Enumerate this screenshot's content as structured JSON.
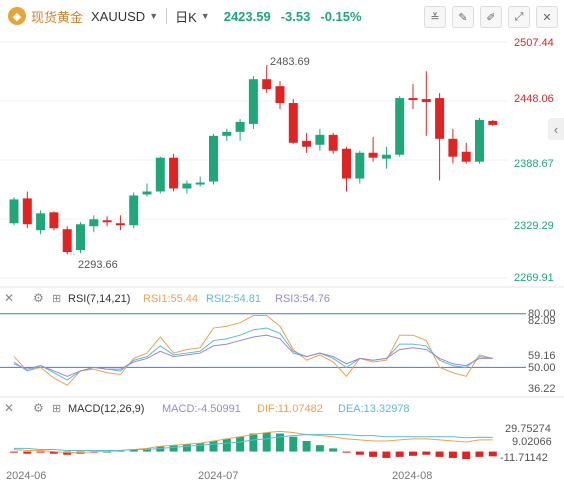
{
  "header": {
    "title": "现货黄金",
    "symbol": "XAUUSD",
    "period": "日K",
    "last_price": "2423.59",
    "change": "-3.53",
    "change_pct": "-0.15%"
  },
  "colors": {
    "up": "#e02424",
    "down": "#1fa77b",
    "rsi1": "#f0a050",
    "rsi2": "#5bbcd6",
    "rsi3": "#9a86d8",
    "macd_label": "#9a86d8",
    "dif": "#f0a050",
    "dea": "#5bbcd6"
  },
  "price_axis": [
    "2507.44",
    "2448.06",
    "2388.67",
    "2329.29",
    "2269.91"
  ],
  "annotations": {
    "high": "2483.69",
    "low": "2293.66"
  },
  "rsi_header": {
    "name": "RSI(7,14,21)",
    "rsi1": "RSI1:55.44",
    "rsi2": "RSI2:54.81",
    "rsi3": "RSI3:54.76"
  },
  "rsi_axis": {
    "upper": "80.00",
    "max": "82.09",
    "mid": "59.16",
    "lower": "50.00",
    "min": "36.22"
  },
  "macd_header": {
    "name": "MACD(12,26,9)",
    "macd": "MACD:-4.50991",
    "dif": "DIF:11.07482",
    "dea": "DEA:13.32978"
  },
  "macd_axis": [
    "29.75274",
    "9.02066",
    "-11.71142"
  ],
  "x_axis": [
    "2024-06",
    "2024-07",
    "2024-08"
  ],
  "chart_data": [
    {
      "type": "candlestick",
      "title": "XAUUSD",
      "ylim": [
        2269.91,
        2507.44
      ],
      "candles": [
        {
          "o": 2325,
          "h": 2351,
          "l": 2323,
          "c": 2349
        },
        {
          "o": 2350,
          "h": 2357,
          "l": 2320,
          "c": 2324
        },
        {
          "o": 2318,
          "h": 2338,
          "l": 2314,
          "c": 2335
        },
        {
          "o": 2336,
          "h": 2337,
          "l": 2318,
          "c": 2320
        },
        {
          "o": 2319,
          "h": 2322,
          "l": 2294,
          "c": 2296
        },
        {
          "o": 2298,
          "h": 2326,
          "l": 2295,
          "c": 2324
        },
        {
          "o": 2322,
          "h": 2333,
          "l": 2316,
          "c": 2329
        },
        {
          "o": 2328,
          "h": 2332,
          "l": 2322,
          "c": 2326
        },
        {
          "o": 2325,
          "h": 2333,
          "l": 2318,
          "c": 2323
        },
        {
          "o": 2323,
          "h": 2356,
          "l": 2320,
          "c": 2353
        },
        {
          "o": 2354,
          "h": 2365,
          "l": 2352,
          "c": 2357
        },
        {
          "o": 2357,
          "h": 2392,
          "l": 2355,
          "c": 2391
        },
        {
          "o": 2391,
          "h": 2395,
          "l": 2357,
          "c": 2360
        },
        {
          "o": 2360,
          "h": 2368,
          "l": 2355,
          "c": 2365
        },
        {
          "o": 2364,
          "h": 2372,
          "l": 2362,
          "c": 2366
        },
        {
          "o": 2367,
          "h": 2415,
          "l": 2364,
          "c": 2413
        },
        {
          "o": 2413,
          "h": 2420,
          "l": 2408,
          "c": 2417
        },
        {
          "o": 2417,
          "h": 2430,
          "l": 2408,
          "c": 2427
        },
        {
          "o": 2425,
          "h": 2473,
          "l": 2420,
          "c": 2470
        },
        {
          "o": 2470,
          "h": 2483.69,
          "l": 2456,
          "c": 2460
        },
        {
          "o": 2463,
          "h": 2468,
          "l": 2440,
          "c": 2446
        },
        {
          "o": 2446,
          "h": 2450,
          "l": 2405,
          "c": 2406
        },
        {
          "o": 2408,
          "h": 2416,
          "l": 2396,
          "c": 2402
        },
        {
          "o": 2404,
          "h": 2420,
          "l": 2398,
          "c": 2414
        },
        {
          "o": 2414,
          "h": 2416,
          "l": 2395,
          "c": 2398
        },
        {
          "o": 2400,
          "h": 2402,
          "l": 2357,
          "c": 2370
        },
        {
          "o": 2370,
          "h": 2398,
          "l": 2365,
          "c": 2396
        },
        {
          "o": 2396,
          "h": 2412,
          "l": 2387,
          "c": 2391
        },
        {
          "o": 2390,
          "h": 2402,
          "l": 2380,
          "c": 2394
        },
        {
          "o": 2394,
          "h": 2453,
          "l": 2392,
          "c": 2451
        },
        {
          "o": 2451,
          "h": 2465,
          "l": 2440,
          "c": 2449
        },
        {
          "o": 2450,
          "h": 2478,
          "l": 2413,
          "c": 2447
        },
        {
          "o": 2451,
          "h": 2456,
          "l": 2368,
          "c": 2410
        },
        {
          "o": 2410,
          "h": 2420,
          "l": 2385,
          "c": 2392
        },
        {
          "o": 2397,
          "h": 2406,
          "l": 2385,
          "c": 2387
        },
        {
          "o": 2387,
          "h": 2431,
          "l": 2385,
          "c": 2429
        },
        {
          "o": 2428,
          "h": 2429,
          "l": 2423,
          "c": 2424
        }
      ],
      "x_ticks": [
        {
          "label": "2024-06",
          "index": 0
        },
        {
          "label": "2024-07",
          "index": 18
        },
        {
          "label": "2024-08",
          "index": 32
        }
      ]
    },
    {
      "type": "line",
      "title": "RSI(7,14,21)",
      "ylim": [
        36.22,
        82.09
      ],
      "reference_lines": [
        80.0,
        50.0
      ],
      "series": [
        {
          "name": "RSI1",
          "values": [
            56,
            48,
            50,
            44,
            40,
            48,
            49,
            47,
            46,
            55,
            58,
            67,
            58,
            60,
            61,
            72,
            73,
            75,
            79,
            79,
            73,
            60,
            54,
            57,
            53,
            45,
            55,
            53,
            54,
            68,
            68,
            65,
            50,
            47,
            45,
            57,
            55
          ]
        },
        {
          "name": "RSI2",
          "values": [
            53,
            48,
            51,
            47,
            43,
            48,
            50,
            49,
            48,
            54,
            56,
            62,
            57,
            58,
            59,
            65,
            66,
            68,
            71,
            72,
            69,
            59,
            56,
            58,
            55,
            50,
            55,
            54,
            55,
            63,
            63,
            62,
            54,
            51,
            50,
            56,
            55
          ]
        },
        {
          "name": "RSI3",
          "values": [
            52,
            49,
            51,
            48,
            45,
            48,
            50,
            49,
            49,
            53,
            55,
            59,
            56,
            57,
            58,
            62,
            63,
            65,
            67,
            68,
            66,
            58,
            56,
            58,
            56,
            52,
            55,
            54,
            55,
            60,
            61,
            60,
            55,
            52,
            51,
            55,
            55
          ]
        }
      ]
    },
    {
      "type": "bar",
      "title": "MACD(12,26,9)",
      "ylim": [
        -11.71142,
        29.75274
      ],
      "series": [
        {
          "name": "MACD",
          "values": [
            -1,
            -2,
            -1,
            -2,
            -3,
            -2,
            -1,
            0,
            1,
            2,
            3,
            5,
            6,
            7,
            8,
            10,
            12,
            14,
            17,
            18,
            17,
            14,
            10,
            6,
            3,
            -1,
            -3,
            -5,
            -6,
            -5,
            -4,
            -3,
            -5,
            -6,
            -7,
            -5,
            -4.5
          ]
        },
        {
          "name": "DIF",
          "values": [
            2,
            1,
            1,
            0,
            -1,
            -1,
            0,
            0,
            1,
            2,
            3,
            5,
            6,
            7,
            8,
            10,
            12,
            14,
            16,
            18,
            19,
            18,
            16,
            15,
            14,
            12,
            11,
            10,
            10,
            11,
            12,
            12,
            11,
            10,
            9,
            11,
            11.07
          ]
        },
        {
          "name": "DEA",
          "values": [
            3,
            3,
            2,
            2,
            1,
            1,
            1,
            1,
            1,
            2,
            2,
            3,
            4,
            5,
            6,
            7,
            8,
            9,
            11,
            12,
            14,
            15,
            16,
            16,
            16,
            16,
            15,
            15,
            14,
            14,
            14,
            14,
            14,
            14,
            13,
            13.5,
            13.33
          ]
        }
      ]
    }
  ]
}
